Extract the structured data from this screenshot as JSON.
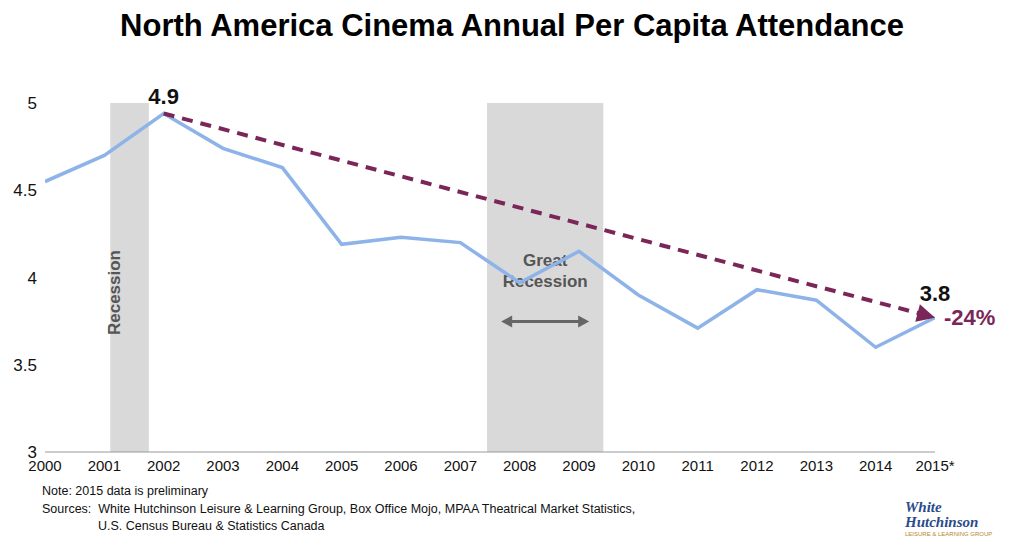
{
  "chart_data": {
    "type": "line",
    "title": "North America Cinema Annual Per Capita Attendance",
    "x": [
      2000,
      2001,
      2002,
      2003,
      2004,
      2005,
      2006,
      2007,
      2008,
      2009,
      2010,
      2011,
      2012,
      2013,
      2014,
      2015
    ],
    "values": [
      4.55,
      4.7,
      4.94,
      4.74,
      4.63,
      4.19,
      4.23,
      4.2,
      3.97,
      4.15,
      3.9,
      3.71,
      3.93,
      3.87,
      3.6,
      3.77
    ],
    "color": "#8db3e8",
    "xlim": [
      2000,
      2015
    ],
    "xticks": [
      2000,
      2001,
      2002,
      2003,
      2004,
      2005,
      2006,
      2007,
      2008,
      2009,
      2010,
      2011,
      2012,
      2013,
      2014,
      {
        "value": 2015,
        "label": "2015*"
      }
    ],
    "ylim": [
      3,
      5
    ],
    "yticks": [
      3,
      3.5,
      4,
      4.5,
      5
    ],
    "grid": false,
    "annotations": [
      {
        "text": "4.9",
        "x": 2002,
        "y": 4.94
      },
      {
        "text": "3.8",
        "x": 2015,
        "y": 3.77
      }
    ],
    "trend": {
      "x": [
        2002,
        2015
      ],
      "y": [
        4.94,
        3.77
      ],
      "label": "-24%",
      "color": "#7b2658",
      "line_style": "dashed"
    },
    "bands": [
      {
        "label": "Recession",
        "x": [
          2001.1,
          2001.75
        ],
        "color": "#d9d9d9"
      },
      {
        "label": "Great Recession",
        "x": [
          2007.45,
          2009.41
        ],
        "color": "#d9d9d9"
      }
    ],
    "note": "Note: 2015 data is preliminary",
    "sources": [
      "Sources:  White Hutchinson Leisure & Learning Group, Box Office Mojo, MPAA Theatrical Market Statistics,",
      "U.S. Census Bureau & Statistics Canada"
    ],
    "logo": [
      "White",
      "Hutchinson",
      "LEISURE & LEARNING GROUP"
    ]
  }
}
